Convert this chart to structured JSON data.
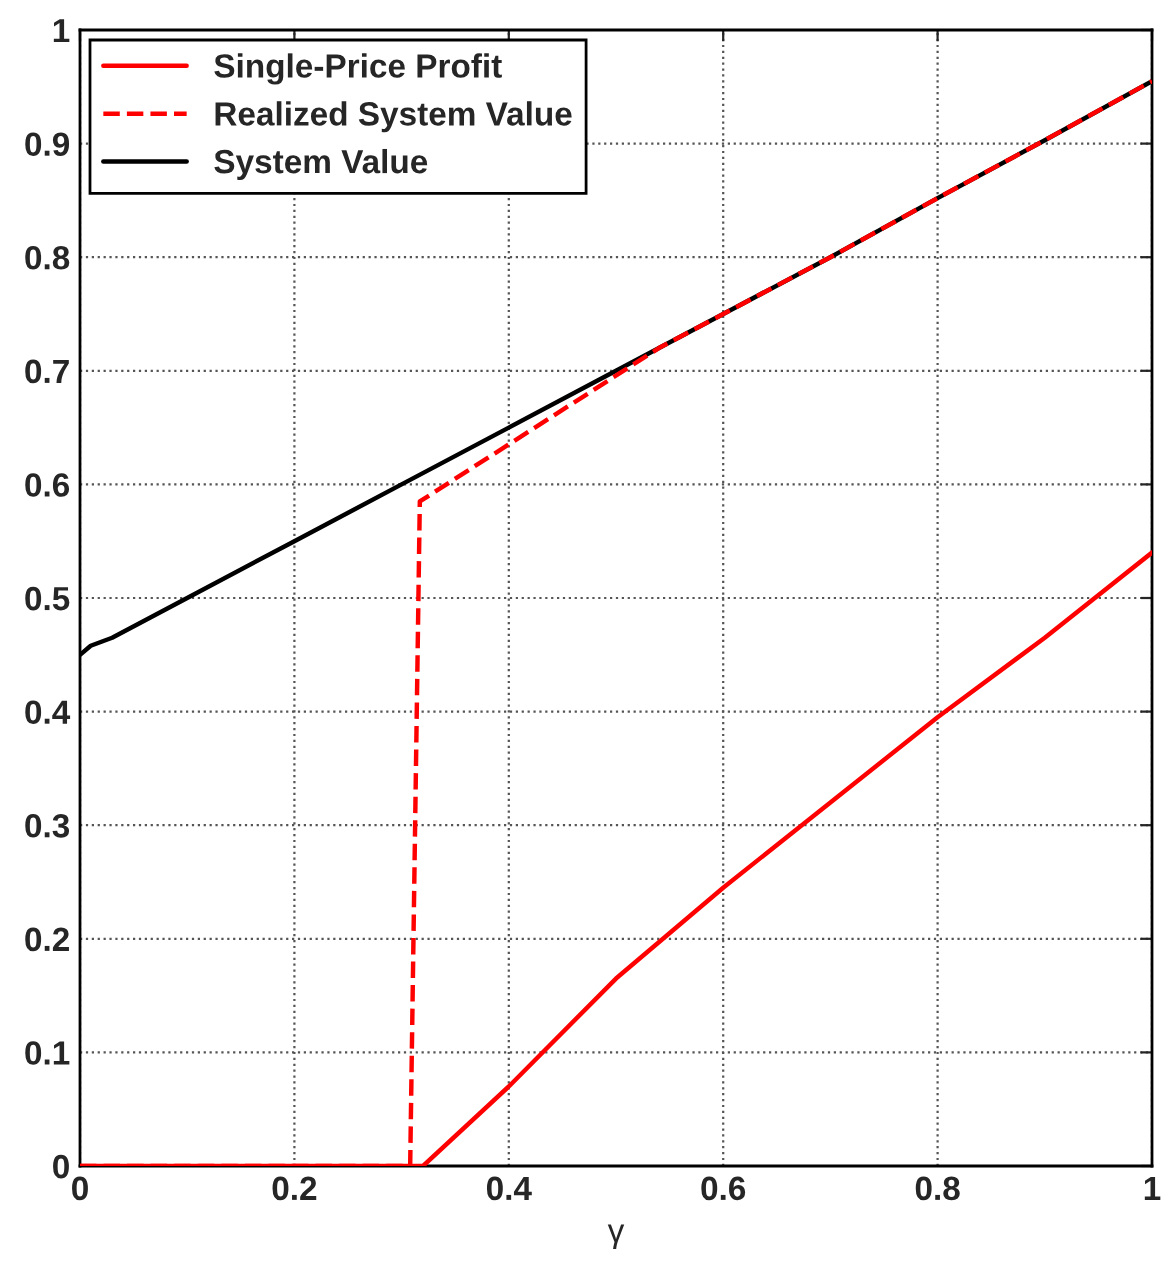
{
  "chart_data": {
    "type": "line",
    "xlabel": "γ",
    "xlim": [
      0,
      1
    ],
    "ylim": [
      0,
      1
    ],
    "xticks": [
      0,
      0.2,
      0.4,
      0.6,
      0.8,
      1
    ],
    "yticks": [
      0,
      0.1,
      0.2,
      0.3,
      0.4,
      0.5,
      0.6,
      0.7,
      0.8,
      0.9,
      1
    ],
    "grid": true,
    "legend": "top left",
    "marker": "none",
    "series": [
      {
        "name": "Single-Price Profit",
        "color": "#ff0000",
        "line_style": "solid",
        "x": [
          0,
          0.31,
          0.32,
          0.4,
          0.5,
          0.6,
          0.7,
          0.8,
          0.9,
          1
        ],
        "values": [
          0,
          0,
          0,
          0.07,
          0.165,
          0.245,
          0.32,
          0.395,
          0.465,
          0.54
        ]
      },
      {
        "name": "Realized System Value",
        "color": "#ff0000",
        "line_style": "dashed",
        "x": [
          0,
          0.308,
          0.317,
          0.54,
          0.6,
          0.7,
          0.8,
          0.9,
          1
        ],
        "values": [
          0,
          0,
          0.585,
          0.72,
          0.75,
          0.8,
          0.852,
          0.903,
          0.955
        ]
      },
      {
        "name": "System Value",
        "color": "#000000",
        "line_style": "solid",
        "x": [
          0,
          0.01,
          0.03,
          0.1,
          0.2,
          0.3,
          0.4,
          0.5,
          0.6,
          0.7,
          0.8,
          0.9,
          1
        ],
        "values": [
          0.45,
          0.458,
          0.465,
          0.5,
          0.55,
          0.6,
          0.65,
          0.7,
          0.75,
          0.8,
          0.852,
          0.903,
          0.955
        ]
      }
    ]
  }
}
